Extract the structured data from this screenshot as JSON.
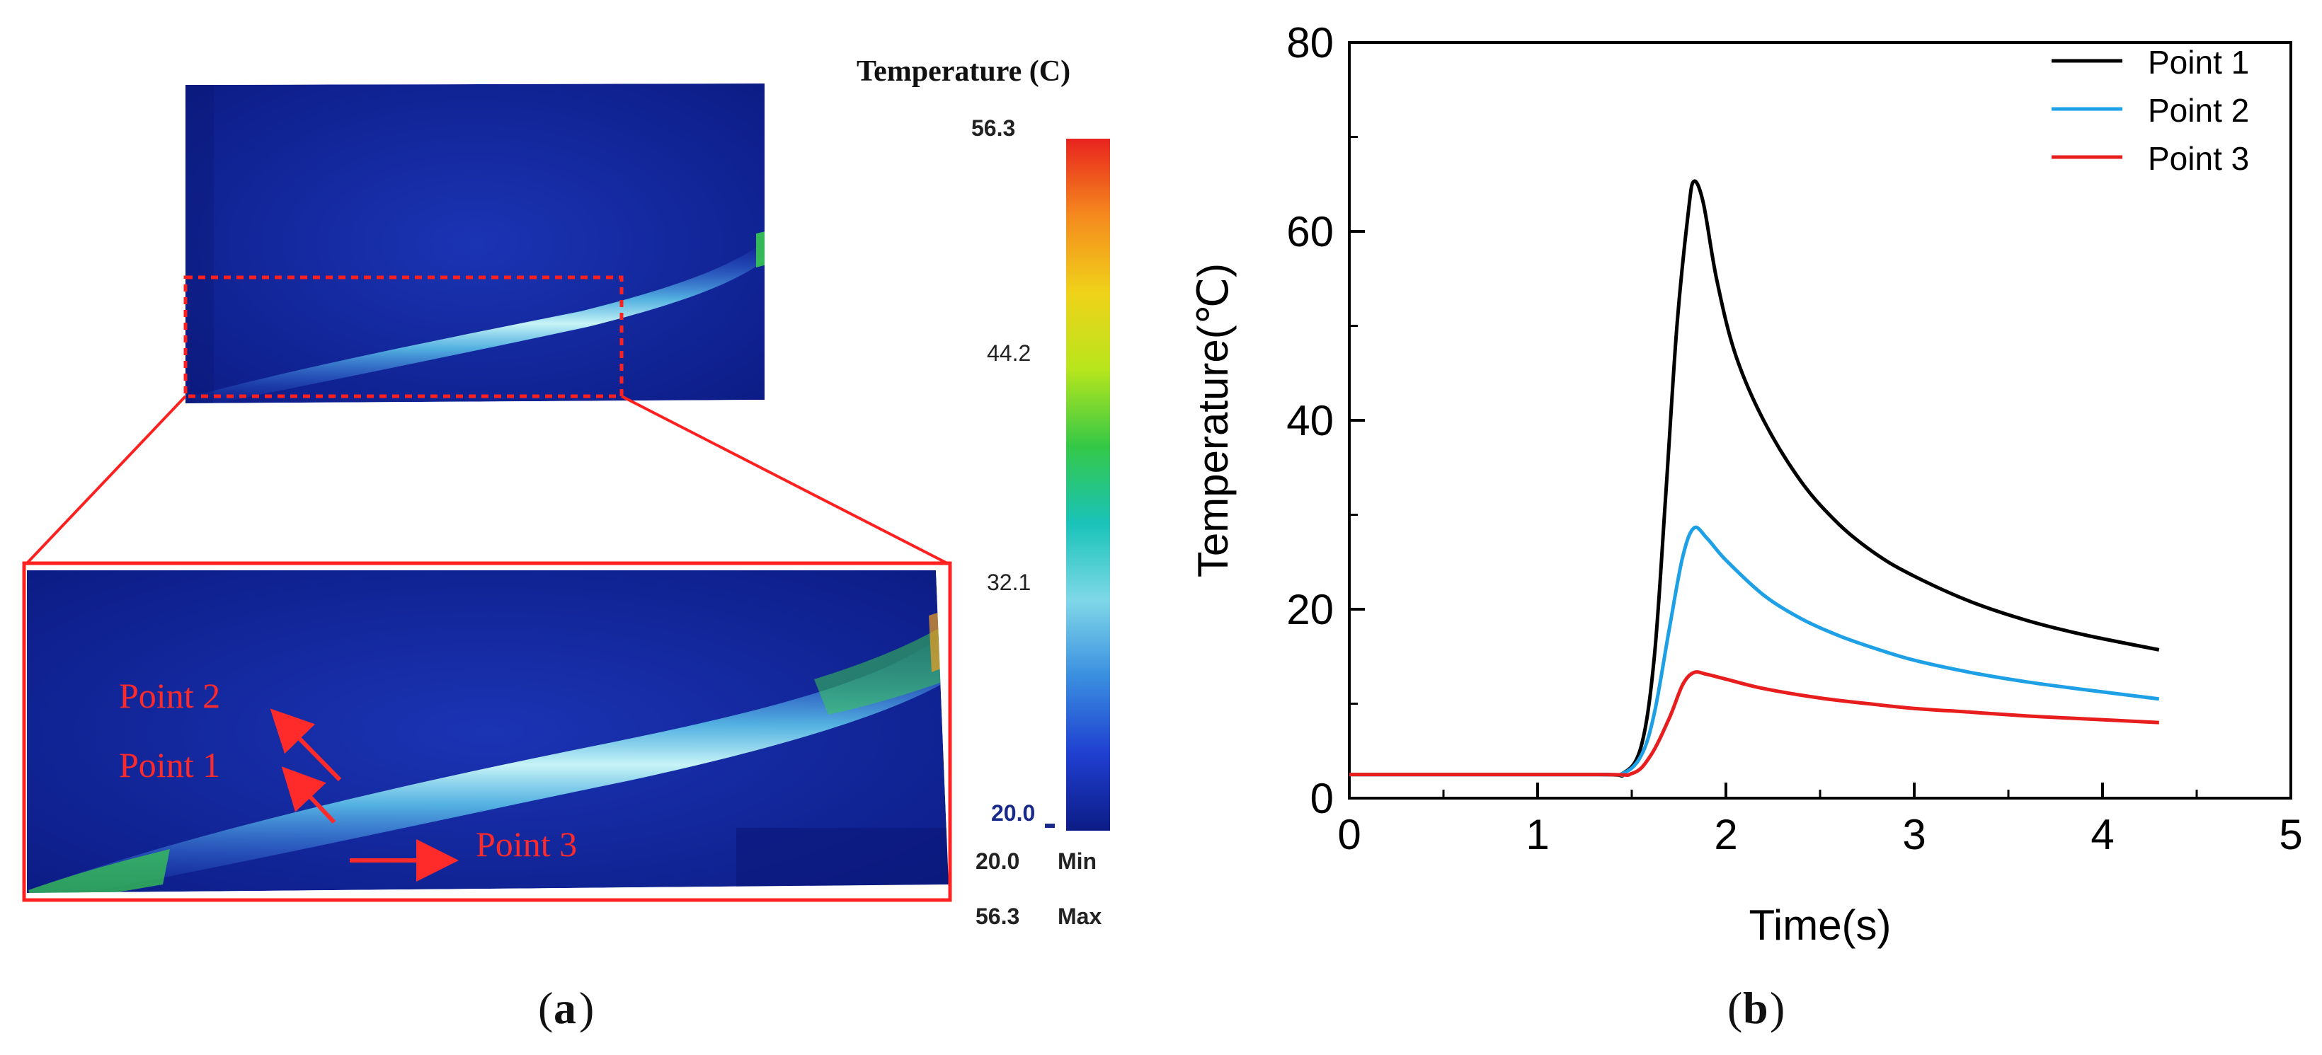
{
  "panel_a": {
    "caption_letter": "a",
    "legend": {
      "title": "Temperature (C)",
      "max_label": "56.3",
      "tick_labels": [
        "44.2",
        "32.1"
      ],
      "min_label": "20.0",
      "min_row": {
        "value": "20.0",
        "label": "Min"
      },
      "max_row": {
        "value": "56.3",
        "label": "Max"
      },
      "colors": [
        "#0c1c86",
        "#1f3fd0",
        "#3a8ee0",
        "#7fd8e8",
        "#19c3b9",
        "#35c847",
        "#b8e61c",
        "#f0d21a",
        "#f58a1e",
        "#e8231e"
      ]
    },
    "annotations": {
      "point2": "Point 2",
      "point1": "Point 1",
      "point3": "Point 3"
    },
    "colors": {
      "highlight": "#ff2020",
      "annotation": "#ff2a2a",
      "bg": "#1a2a9a"
    }
  },
  "panel_b": {
    "caption_letter": "b",
    "chart_data": {
      "type": "line",
      "title": "",
      "xlabel": "Time(s)",
      "ylabel": "Temperature(℃)",
      "xlim": [
        0,
        5
      ],
      "ylim": [
        0,
        80
      ],
      "xticks": [
        0,
        1,
        2,
        3,
        4,
        5
      ],
      "yticks": [
        0,
        20,
        40,
        60,
        80
      ],
      "x_tick_labels": [
        "0",
        "1",
        "2",
        "3",
        "4",
        "5"
      ],
      "y_tick_labels": [
        "0",
        "20",
        "40",
        "60",
        "80"
      ],
      "legend_position": "top-right",
      "series": [
        {
          "name": "Point 1",
          "color": "#000000",
          "x": [
            0,
            1.3,
            1.45,
            1.55,
            1.62,
            1.68,
            1.74,
            1.8,
            1.83,
            1.88,
            1.95,
            2.05,
            2.2,
            2.4,
            2.6,
            2.8,
            3.0,
            3.3,
            3.6,
            3.9,
            4.3
          ],
          "y": [
            2.5,
            2.5,
            2.6,
            5.5,
            15,
            32,
            50,
            62,
            65.3,
            63,
            55,
            47,
            40,
            33.5,
            29,
            25.8,
            23.5,
            20.8,
            18.8,
            17.3,
            15.7
          ]
        },
        {
          "name": "Point 2",
          "color": "#1ea0e6",
          "x": [
            0,
            1.3,
            1.45,
            1.55,
            1.62,
            1.7,
            1.77,
            1.83,
            1.9,
            2.0,
            2.2,
            2.4,
            2.6,
            2.8,
            3.0,
            3.3,
            3.6,
            3.9,
            4.3
          ],
          "y": [
            2.5,
            2.5,
            2.6,
            4.5,
            9,
            18,
            25.5,
            28.6,
            27.5,
            25.2,
            21.5,
            19,
            17.2,
            15.8,
            14.6,
            13.3,
            12.3,
            11.5,
            10.5
          ]
        },
        {
          "name": "Point 3",
          "color": "#e81d1d",
          "x": [
            0,
            1.3,
            1.5,
            1.6,
            1.7,
            1.77,
            1.83,
            1.9,
            2.0,
            2.2,
            2.5,
            2.8,
            3.0,
            3.3,
            3.6,
            3.9,
            4.3
          ],
          "y": [
            2.5,
            2.5,
            2.6,
            4.5,
            8.5,
            12,
            13.3,
            13.1,
            12.6,
            11.6,
            10.6,
            9.9,
            9.5,
            9.1,
            8.7,
            8.4,
            8.0
          ]
        }
      ]
    }
  }
}
